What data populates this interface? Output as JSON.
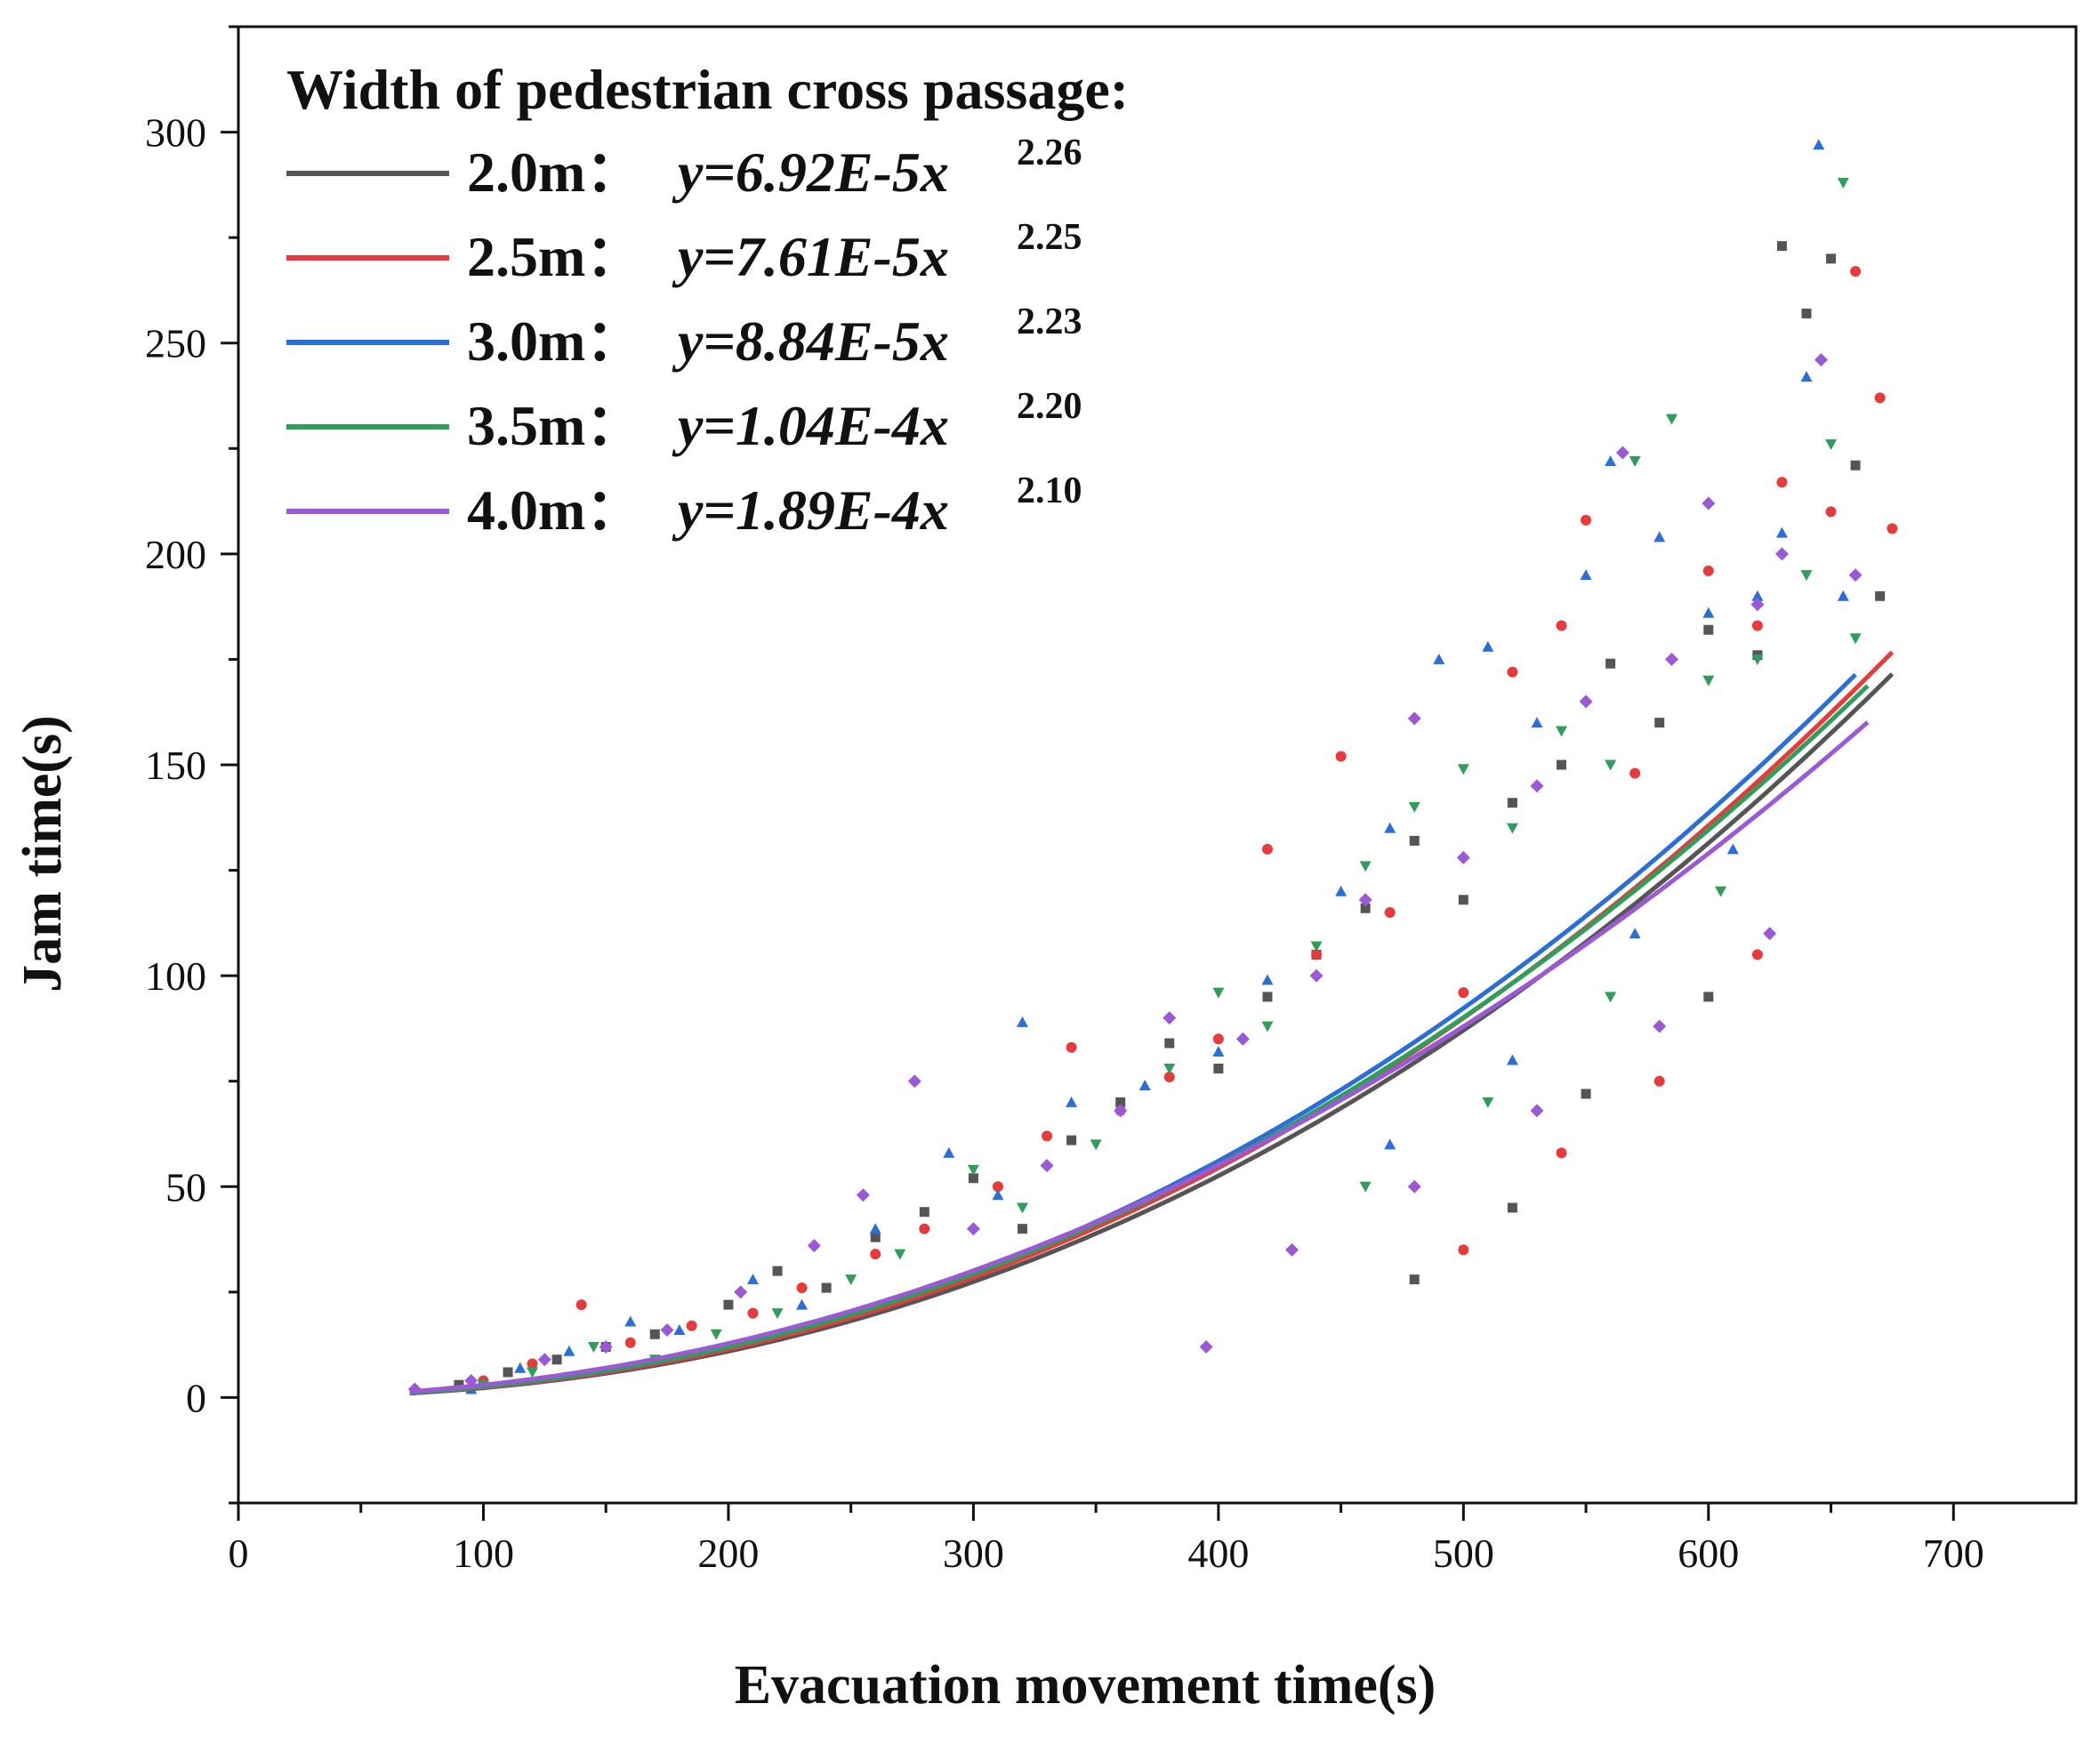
{
  "chart_data": {
    "type": "scatter",
    "title": "",
    "xlabel": "Evacuation movement time(s)",
    "ylabel": "Jam time(s)",
    "xlim": [
      0,
      750
    ],
    "ylim": [
      -25,
      325
    ],
    "x_ticks": [
      0,
      100,
      200,
      300,
      400,
      500,
      600,
      700
    ],
    "y_ticks": [
      0,
      50,
      100,
      150,
      200,
      250,
      300
    ],
    "legend": {
      "title": "Width of pedestrian cross passage:",
      "placement": "top-left"
    },
    "series": [
      {
        "name": "2.0m",
        "equation_prefix": "y=6.92E-5x",
        "exponent_label": "2.26",
        "a": 6.92e-05,
        "b": 2.26,
        "color": "#555555",
        "marker": "square",
        "fit_range": [
          70,
          675
        ],
        "points": [
          [
            90,
            3
          ],
          [
            110,
            6
          ],
          [
            130,
            9
          ],
          [
            150,
            12
          ],
          [
            170,
            15
          ],
          [
            200,
            22
          ],
          [
            220,
            30
          ],
          [
            240,
            26
          ],
          [
            260,
            38
          ],
          [
            280,
            44
          ],
          [
            300,
            52
          ],
          [
            320,
            40
          ],
          [
            340,
            61
          ],
          [
            360,
            70
          ],
          [
            380,
            84
          ],
          [
            400,
            78
          ],
          [
            420,
            95
          ],
          [
            440,
            105
          ],
          [
            460,
            116
          ],
          [
            480,
            132
          ],
          [
            500,
            118
          ],
          [
            520,
            141
          ],
          [
            540,
            150
          ],
          [
            560,
            174
          ],
          [
            580,
            160
          ],
          [
            600,
            182
          ],
          [
            620,
            176
          ],
          [
            630,
            273
          ],
          [
            640,
            257
          ],
          [
            650,
            270
          ],
          [
            660,
            221
          ],
          [
            670,
            190
          ],
          [
            480,
            28
          ],
          [
            520,
            45
          ],
          [
            550,
            72
          ],
          [
            600,
            95
          ]
        ]
      },
      {
        "name": "2.5m",
        "equation_prefix": "y=7.61E-5x",
        "exponent_label": "2.25",
        "a": 7.61e-05,
        "b": 2.25,
        "color": "#e83a3a",
        "marker": "circle",
        "fit_range": [
          70,
          675
        ],
        "points": [
          [
            100,
            4
          ],
          [
            120,
            8
          ],
          [
            140,
            22
          ],
          [
            160,
            13
          ],
          [
            185,
            17
          ],
          [
            210,
            20
          ],
          [
            230,
            26
          ],
          [
            260,
            34
          ],
          [
            280,
            40
          ],
          [
            310,
            50
          ],
          [
            330,
            62
          ],
          [
            340,
            83
          ],
          [
            360,
            68
          ],
          [
            380,
            76
          ],
          [
            400,
            85
          ],
          [
            420,
            130
          ],
          [
            440,
            105
          ],
          [
            450,
            152
          ],
          [
            470,
            115
          ],
          [
            500,
            96
          ],
          [
            520,
            172
          ],
          [
            540,
            183
          ],
          [
            550,
            208
          ],
          [
            570,
            148
          ],
          [
            600,
            196
          ],
          [
            620,
            183
          ],
          [
            630,
            217
          ],
          [
            650,
            210
          ],
          [
            660,
            267
          ],
          [
            670,
            237
          ],
          [
            675,
            206
          ],
          [
            500,
            35
          ],
          [
            540,
            58
          ],
          [
            580,
            75
          ],
          [
            620,
            105
          ]
        ]
      },
      {
        "name": "3.0m",
        "equation_prefix": "y=8.84E-5x",
        "exponent_label": "2.23",
        "a": 8.84e-05,
        "b": 2.23,
        "color": "#2a6fd8",
        "marker": "triangle-up",
        "fit_range": [
          70,
          660
        ],
        "points": [
          [
            95,
            2
          ],
          [
            115,
            7
          ],
          [
            135,
            11
          ],
          [
            160,
            18
          ],
          [
            180,
            16
          ],
          [
            210,
            28
          ],
          [
            230,
            22
          ],
          [
            260,
            40
          ],
          [
            290,
            58
          ],
          [
            310,
            48
          ],
          [
            320,
            89
          ],
          [
            340,
            70
          ],
          [
            370,
            74
          ],
          [
            400,
            82
          ],
          [
            420,
            99
          ],
          [
            450,
            120
          ],
          [
            470,
            135
          ],
          [
            490,
            175
          ],
          [
            510,
            178
          ],
          [
            530,
            160
          ],
          [
            550,
            195
          ],
          [
            560,
            222
          ],
          [
            580,
            204
          ],
          [
            600,
            186
          ],
          [
            620,
            190
          ],
          [
            630,
            205
          ],
          [
            640,
            242
          ],
          [
            645,
            297
          ],
          [
            655,
            190
          ],
          [
            470,
            60
          ],
          [
            520,
            80
          ],
          [
            570,
            110
          ],
          [
            610,
            130
          ]
        ]
      },
      {
        "name": "3.5m",
        "equation_prefix": "y=1.04E-4x",
        "exponent_label": "2.20",
        "a": 0.000104,
        "b": 2.2,
        "color": "#2e9e5a",
        "marker": "triangle-down",
        "fit_range": [
          70,
          665
        ],
        "points": [
          [
            100,
            3
          ],
          [
            120,
            6
          ],
          [
            145,
            12
          ],
          [
            170,
            9
          ],
          [
            195,
            15
          ],
          [
            220,
            20
          ],
          [
            250,
            28
          ],
          [
            270,
            34
          ],
          [
            300,
            54
          ],
          [
            320,
            45
          ],
          [
            350,
            60
          ],
          [
            380,
            78
          ],
          [
            400,
            96
          ],
          [
            420,
            88
          ],
          [
            440,
            107
          ],
          [
            460,
            126
          ],
          [
            480,
            140
          ],
          [
            500,
            149
          ],
          [
            520,
            135
          ],
          [
            540,
            158
          ],
          [
            560,
            150
          ],
          [
            570,
            222
          ],
          [
            585,
            232
          ],
          [
            600,
            170
          ],
          [
            620,
            175
          ],
          [
            640,
            195
          ],
          [
            650,
            226
          ],
          [
            655,
            288
          ],
          [
            660,
            180
          ],
          [
            460,
            50
          ],
          [
            510,
            70
          ],
          [
            560,
            95
          ],
          [
            605,
            120
          ]
        ]
      },
      {
        "name": "4.0m",
        "equation_prefix": "y=1.89E-4x",
        "exponent_label": "2.10",
        "a": 0.000189,
        "b": 2.1,
        "color": "#9b59d6",
        "marker": "diamond",
        "fit_range": [
          70,
          668
        ],
        "points": [
          [
            72,
            2
          ],
          [
            95,
            4
          ],
          [
            125,
            9
          ],
          [
            150,
            12
          ],
          [
            175,
            16
          ],
          [
            205,
            25
          ],
          [
            235,
            36
          ],
          [
            255,
            48
          ],
          [
            276,
            75
          ],
          [
            300,
            40
          ],
          [
            330,
            55
          ],
          [
            360,
            68
          ],
          [
            380,
            90
          ],
          [
            395,
            12
          ],
          [
            410,
            85
          ],
          [
            440,
            100
          ],
          [
            460,
            118
          ],
          [
            480,
            161
          ],
          [
            500,
            128
          ],
          [
            530,
            145
          ],
          [
            550,
            165
          ],
          [
            565,
            224
          ],
          [
            585,
            175
          ],
          [
            600,
            212
          ],
          [
            620,
            188
          ],
          [
            630,
            200
          ],
          [
            646,
            246
          ],
          [
            660,
            195
          ],
          [
            430,
            35
          ],
          [
            480,
            50
          ],
          [
            530,
            68
          ],
          [
            580,
            88
          ],
          [
            625,
            110
          ]
        ]
      }
    ]
  }
}
